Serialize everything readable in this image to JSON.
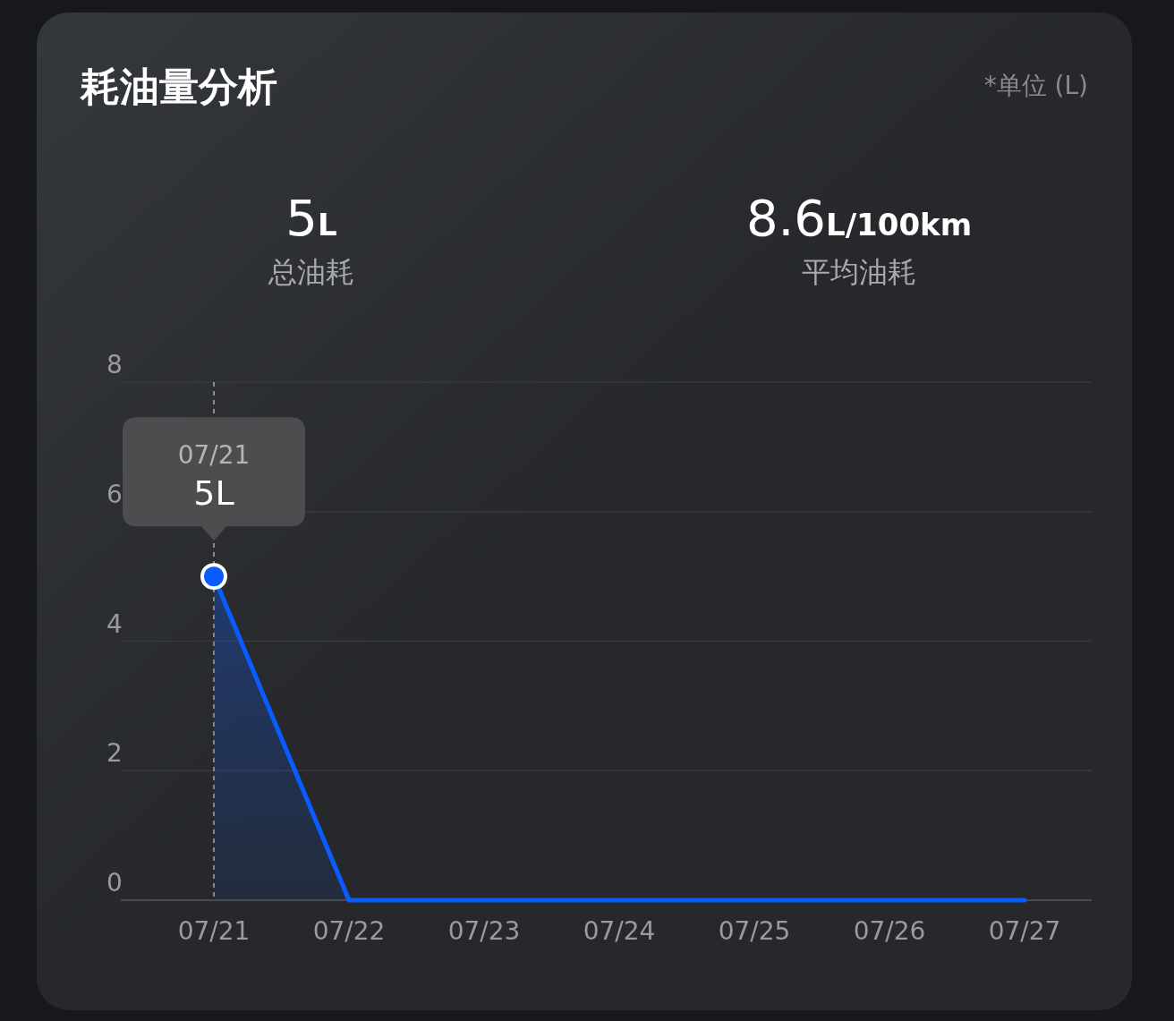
{
  "chart_data": {
    "type": "area",
    "title": "耗油量分析",
    "annotations": [
      "*单位 (L)",
      "5L",
      "总油耗",
      "8.6L/100km",
      "平均油耗",
      "07/21",
      "5L"
    ],
    "categories": [
      "07/21",
      "07/22",
      "07/23",
      "07/24",
      "07/25",
      "07/26",
      "07/27"
    ],
    "series": [
      {
        "color": "#0a5cff",
        "values": [
          5,
          0,
          0,
          0,
          0,
          0,
          0
        ]
      }
    ],
    "ylim": [
      0,
      8
    ],
    "yticks": [
      0,
      2,
      4,
      6,
      8
    ],
    "grid": "y",
    "ref_lines": [
      {
        "axis": "x",
        "value": "07/21",
        "color": "#cccccc",
        "line_style": "dashed"
      }
    ]
  }
}
